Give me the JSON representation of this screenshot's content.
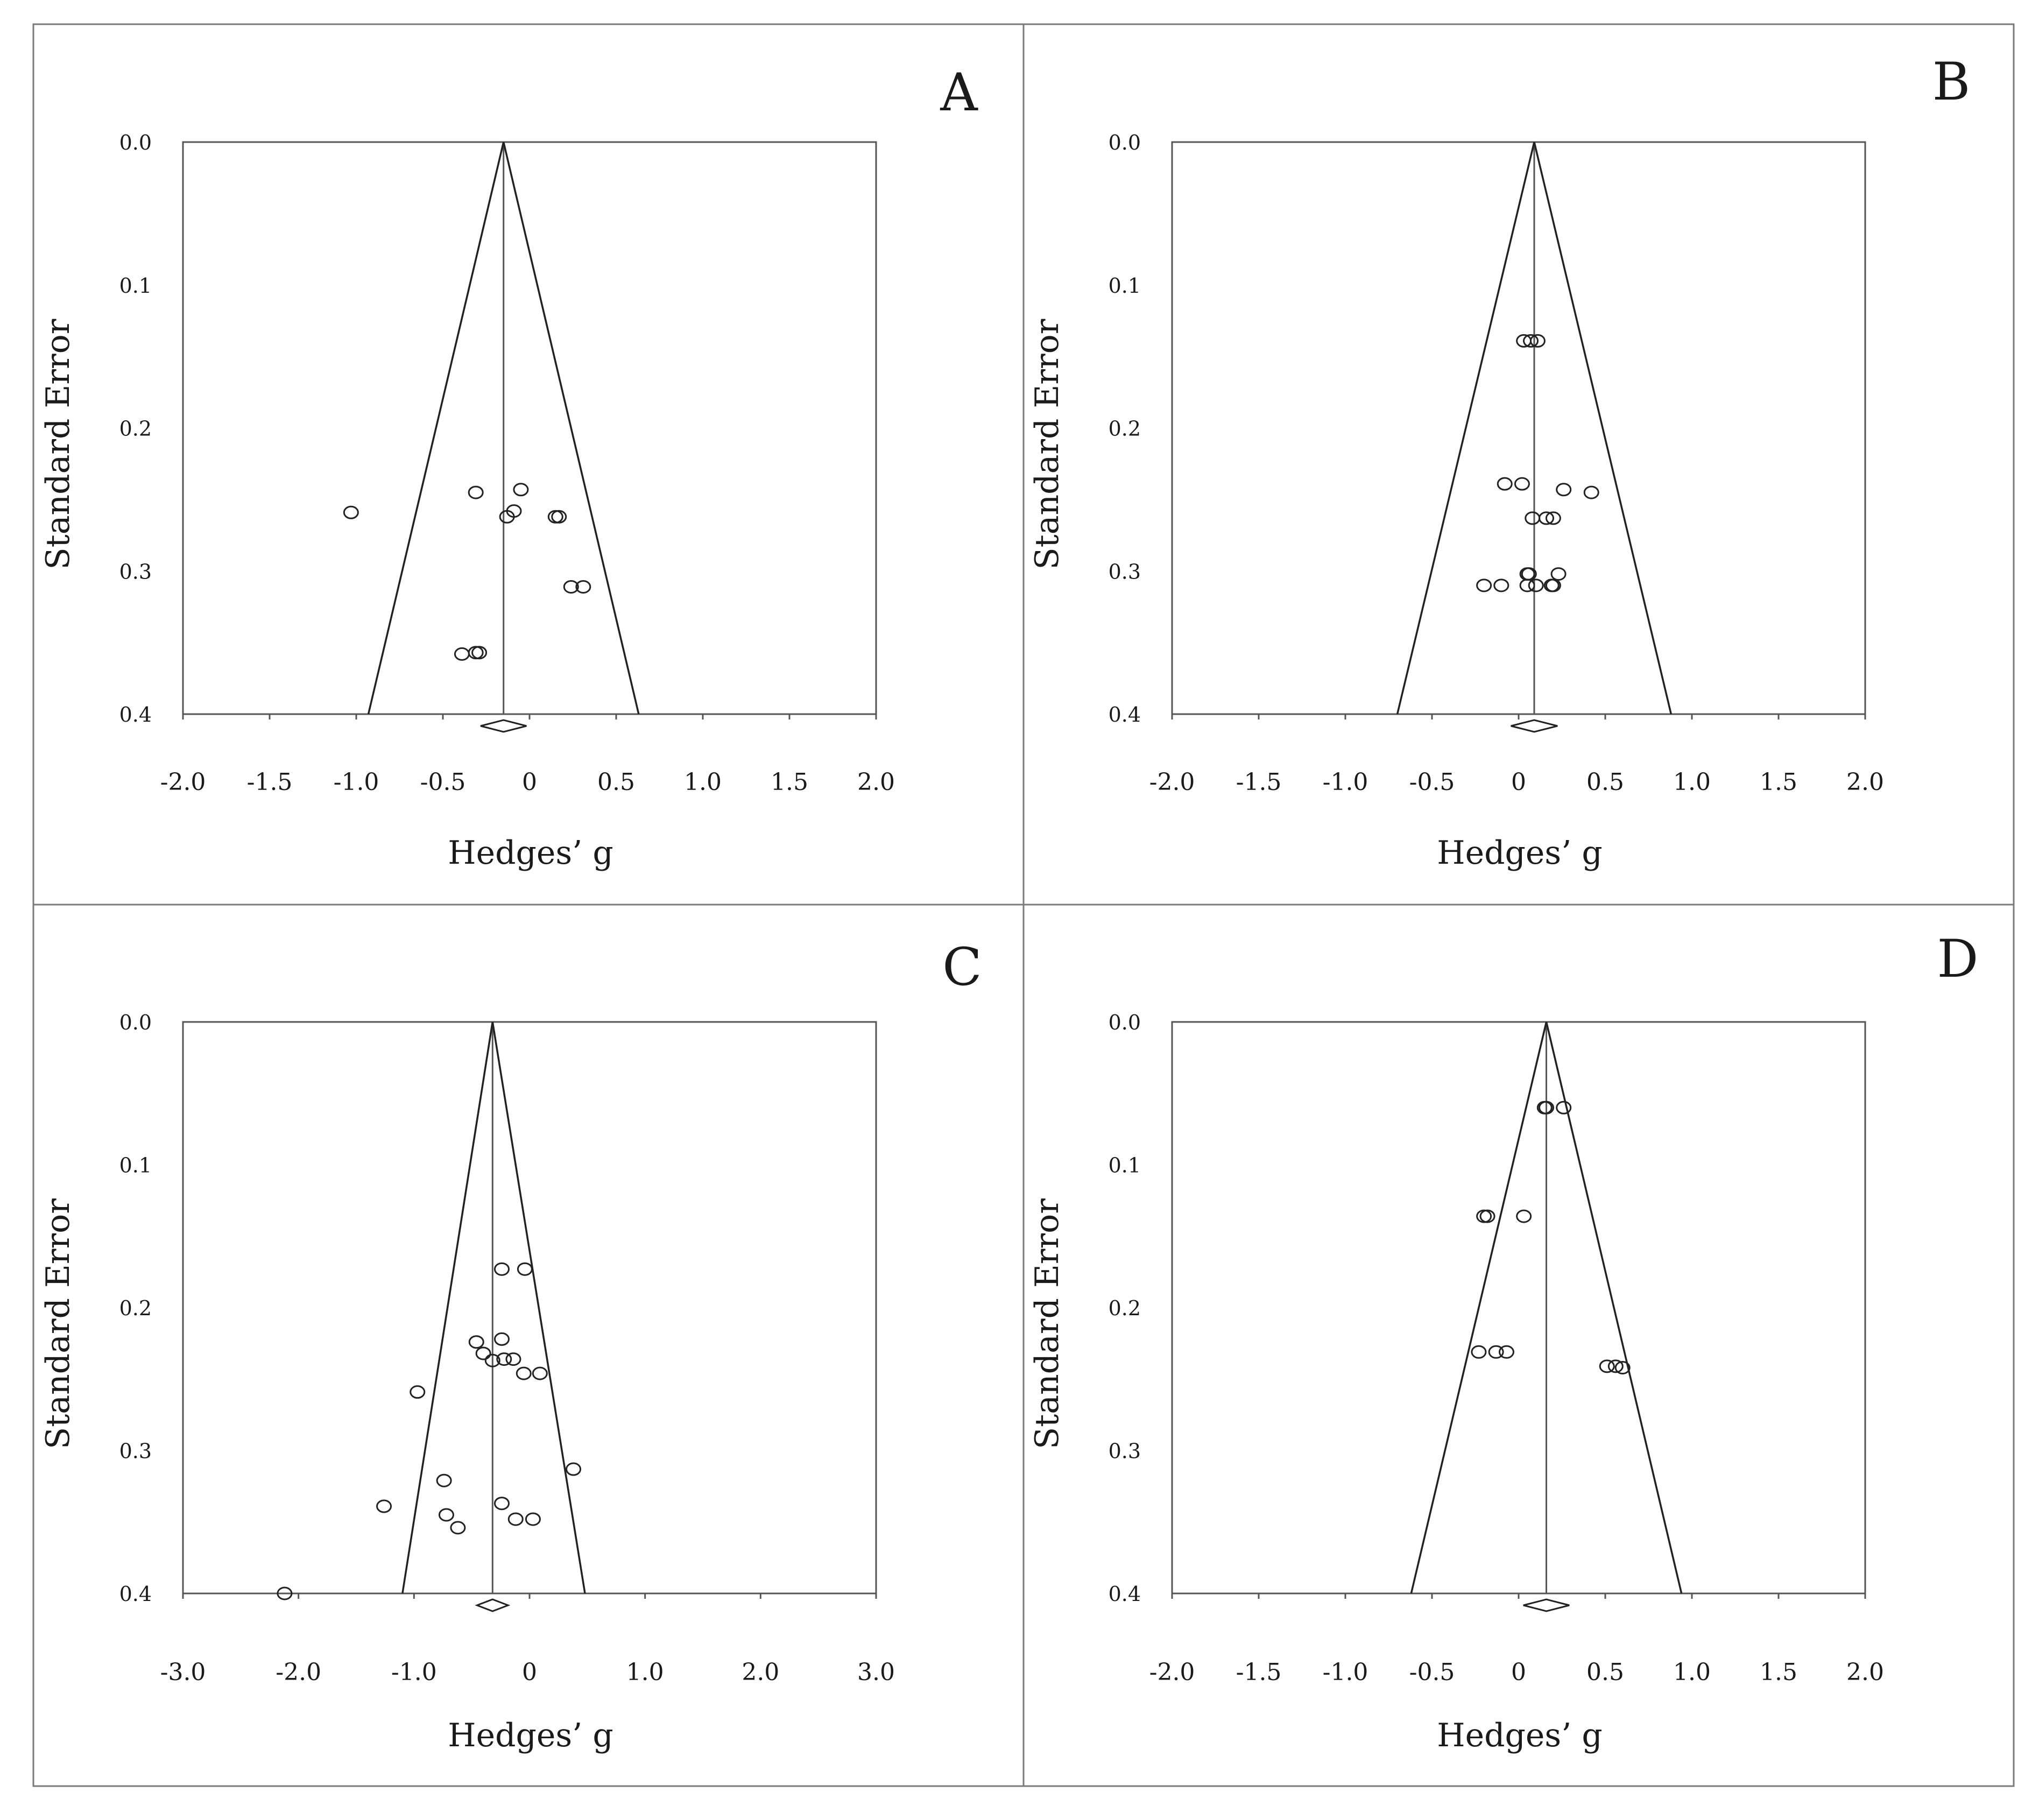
{
  "chart_data": [
    {
      "type": "scatter",
      "panel_label": "A",
      "title": "",
      "xlabel": "Hedges’ g",
      "ylabel": "Standard Error",
      "xlim": [
        -2.0,
        2.0
      ],
      "ylim": [
        0.0,
        0.4
      ],
      "y_inverted": true,
      "x_ticks": [
        "-2.0",
        "-1.5",
        "-1.0",
        "-0.5",
        "0",
        "0.5",
        "1.0",
        "1.5",
        "2.0"
      ],
      "x_tick_values": [
        -2.0,
        -1.5,
        -1.0,
        -0.5,
        0,
        0.5,
        1.0,
        1.5,
        2.0
      ],
      "y_ticks": [
        "0.0",
        "0.1",
        "0.2",
        "0.3",
        "0.4"
      ],
      "y_tick_values": [
        0.0,
        0.1,
        0.2,
        0.3,
        0.4
      ],
      "pooled_estimate": -0.15,
      "funnel_at_max_se": [
        -0.93,
        0.63
      ],
      "points": [
        {
          "g": -1.03,
          "se": 0.259
        },
        {
          "g": -0.31,
          "se": 0.245
        },
        {
          "g": -0.05,
          "se": 0.243
        },
        {
          "g": -0.09,
          "se": 0.258
        },
        {
          "g": -0.13,
          "se": 0.262
        },
        {
          "g": 0.15,
          "se": 0.262
        },
        {
          "g": 0.17,
          "se": 0.262
        },
        {
          "g": 0.24,
          "se": 0.311
        },
        {
          "g": 0.31,
          "se": 0.311
        },
        {
          "g": -0.39,
          "se": 0.358
        },
        {
          "g": -0.31,
          "se": 0.357
        },
        {
          "g": -0.29,
          "se": 0.357
        }
      ]
    },
    {
      "type": "scatter",
      "panel_label": "B",
      "title": "",
      "xlabel": "Hedges’ g",
      "ylabel": "Standard Error",
      "xlim": [
        -2.0,
        2.0
      ],
      "ylim": [
        0.0,
        0.4
      ],
      "y_inverted": true,
      "x_ticks": [
        "-2.0",
        "-1.5",
        "-1.0",
        "-0.5",
        "0",
        "0.5",
        "1.0",
        "1.5",
        "2.0"
      ],
      "x_tick_values": [
        -2.0,
        -1.5,
        -1.0,
        -0.5,
        0,
        0.5,
        1.0,
        1.5,
        2.0
      ],
      "y_ticks": [
        "0.0",
        "0.1",
        "0.2",
        "0.3",
        "0.4"
      ],
      "y_tick_values": [
        0.0,
        0.1,
        0.2,
        0.3,
        0.4
      ],
      "pooled_estimate": 0.09,
      "funnel_at_max_se": [
        -0.7,
        0.88
      ],
      "points": [
        {
          "g": 0.03,
          "se": 0.139
        },
        {
          "g": 0.07,
          "se": 0.139
        },
        {
          "g": 0.11,
          "se": 0.139
        },
        {
          "g": -0.08,
          "se": 0.239
        },
        {
          "g": 0.02,
          "se": 0.239
        },
        {
          "g": 0.26,
          "se": 0.243
        },
        {
          "g": 0.42,
          "se": 0.245
        },
        {
          "g": 0.08,
          "se": 0.263
        },
        {
          "g": 0.16,
          "se": 0.263
        },
        {
          "g": 0.2,
          "se": 0.263
        },
        {
          "g": 0.05,
          "se": 0.302
        },
        {
          "g": 0.06,
          "se": 0.302
        },
        {
          "g": 0.23,
          "se": 0.302
        },
        {
          "g": -0.2,
          "se": 0.31
        },
        {
          "g": -0.1,
          "se": 0.31
        },
        {
          "g": 0.05,
          "se": 0.31
        },
        {
          "g": 0.1,
          "se": 0.31
        },
        {
          "g": 0.19,
          "se": 0.31
        },
        {
          "g": 0.2,
          "se": 0.31
        }
      ]
    },
    {
      "type": "scatter",
      "panel_label": "C",
      "title": "",
      "xlabel": "Hedges’ g",
      "ylabel": "Standard Error",
      "xlim": [
        -3.0,
        3.0
      ],
      "ylim": [
        0.0,
        0.4
      ],
      "y_inverted": true,
      "x_ticks": [
        "-3.0",
        "-2.0",
        "-1.0",
        "0",
        "1.0",
        "2.0",
        "3.0"
      ],
      "x_tick_values": [
        -3.0,
        -2.0,
        -1.0,
        0,
        1.0,
        2.0,
        3.0
      ],
      "y_ticks": [
        "0.0",
        "0.1",
        "0.2",
        "0.3",
        "0.4"
      ],
      "y_tick_values": [
        0.0,
        0.1,
        0.2,
        0.3,
        0.4
      ],
      "pooled_estimate": -0.32,
      "funnel_at_max_se": [
        -1.1,
        0.48
      ],
      "points": [
        {
          "g": -0.24,
          "se": 0.173
        },
        {
          "g": -0.04,
          "se": 0.173
        },
        {
          "g": -0.46,
          "se": 0.224
        },
        {
          "g": -0.24,
          "se": 0.222
        },
        {
          "g": -0.4,
          "se": 0.232
        },
        {
          "g": -0.32,
          "se": 0.237
        },
        {
          "g": -0.22,
          "se": 0.236
        },
        {
          "g": -0.14,
          "se": 0.236
        },
        {
          "g": -0.05,
          "se": 0.246
        },
        {
          "g": 0.09,
          "se": 0.246
        },
        {
          "g": -0.97,
          "se": 0.259
        },
        {
          "g": 0.38,
          "se": 0.313
        },
        {
          "g": -0.74,
          "se": 0.321
        },
        {
          "g": -1.26,
          "se": 0.339
        },
        {
          "g": -0.24,
          "se": 0.337
        },
        {
          "g": -0.72,
          "se": 0.345
        },
        {
          "g": -0.12,
          "se": 0.348
        },
        {
          "g": 0.03,
          "se": 0.348
        },
        {
          "g": -0.62,
          "se": 0.354
        },
        {
          "g": -2.12,
          "se": 0.4
        }
      ]
    },
    {
      "type": "scatter",
      "panel_label": "D",
      "title": "",
      "xlabel": "Hedges’ g",
      "ylabel": "Standard Error",
      "xlim": [
        -2.0,
        2.0
      ],
      "ylim": [
        0.0,
        0.4
      ],
      "y_inverted": true,
      "x_ticks": [
        "-2.0",
        "-1.5",
        "-1.0",
        "-0.5",
        "0",
        "0.5",
        "1.0",
        "1.5",
        "2.0"
      ],
      "x_tick_values": [
        -2.0,
        -1.5,
        -1.0,
        -0.5,
        0,
        0.5,
        1.0,
        1.5,
        2.0
      ],
      "y_ticks": [
        "0.0",
        "0.1",
        "0.2",
        "0.3",
        "0.4"
      ],
      "y_tick_values": [
        0.0,
        0.1,
        0.2,
        0.3,
        0.4
      ],
      "pooled_estimate": 0.16,
      "funnel_at_max_se": [
        -0.62,
        0.94
      ],
      "points": [
        {
          "g": 0.15,
          "se": 0.06
        },
        {
          "g": 0.16,
          "se": 0.06
        },
        {
          "g": 0.26,
          "se": 0.06
        },
        {
          "g": -0.2,
          "se": 0.136
        },
        {
          "g": -0.18,
          "se": 0.136
        },
        {
          "g": 0.03,
          "se": 0.136
        },
        {
          "g": -0.23,
          "se": 0.231
        },
        {
          "g": -0.13,
          "se": 0.231
        },
        {
          "g": -0.07,
          "se": 0.231
        },
        {
          "g": 0.51,
          "se": 0.241
        },
        {
          "g": 0.56,
          "se": 0.241
        },
        {
          "g": 0.6,
          "se": 0.242
        }
      ]
    }
  ]
}
